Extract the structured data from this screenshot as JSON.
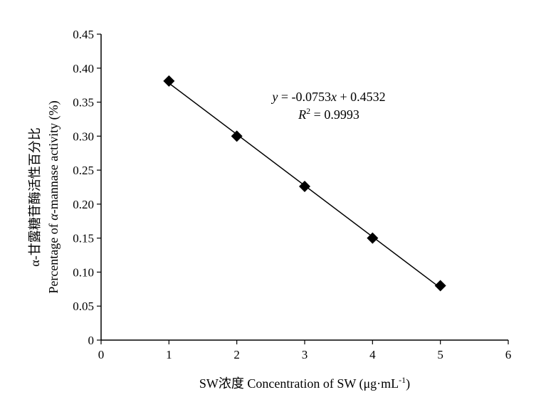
{
  "chart_data": {
    "type": "scatter",
    "x": [
      1,
      2,
      3,
      4,
      5
    ],
    "y": [
      0.381,
      0.3,
      0.226,
      0.15,
      0.08
    ],
    "xlim": [
      0,
      6
    ],
    "ylim": [
      0,
      0.45
    ],
    "xticks": [
      "0",
      "1",
      "2",
      "3",
      "4",
      "5",
      "6"
    ],
    "yticks": [
      "0",
      "0.05",
      "0.10",
      "0.15",
      "0.20",
      "0.25",
      "0.30",
      "0.35",
      "0.40",
      "0.45"
    ],
    "xlabel": {
      "main": "SW浓度 Concentration of SW (μg·mL",
      "sup": "-1",
      "tail": ")"
    },
    "ylabel": {
      "line1": "α-甘露糖苷酶活性百分比",
      "line2_prefix": "Percentage of ",
      "line2_alpha": "α",
      "line2_suffix": "-mannase activity (%)"
    },
    "trendline": {
      "slope": -0.0753,
      "intercept": 0.4532,
      "from_x": 1,
      "to_x": 5
    },
    "equation": {
      "y_var": "y",
      "eq_mid": " = -0.0753",
      "x_var": "x",
      "eq_tail": " + 0.4532",
      "r_var": "R",
      "r_sup": "2",
      "r_tail": " = 0.9993"
    },
    "grid": false,
    "legend": "none",
    "marker": "diamond",
    "color": "#000000"
  }
}
